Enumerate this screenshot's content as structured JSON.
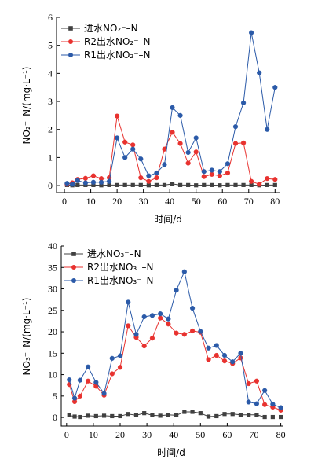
{
  "colors": {
    "influent": "#404040",
    "r2": "#e8322f",
    "r1": "#2b5aa8"
  },
  "chart_data": [
    {
      "type": "line",
      "title": "",
      "xlabel": "时间/d",
      "ylabel": "NO₂⁻–N/(mg·L⁻¹)",
      "xlim": [
        -3,
        82
      ],
      "ylim": [
        -0.25,
        6
      ],
      "xticks": [
        0,
        10,
        20,
        30,
        40,
        50,
        60,
        70,
        80
      ],
      "yticks": [
        0,
        1,
        2,
        3,
        4,
        5,
        6
      ],
      "grid": false,
      "legend_position": "top-left",
      "series": [
        {
          "name": "进水NO₂⁻–N",
          "marker": "square",
          "color_key": "influent",
          "points": [
            [
              1,
              0.02
            ],
            [
              3,
              0.01
            ],
            [
              5,
              0.02
            ],
            [
              8,
              0.02
            ],
            [
              11,
              0.02
            ],
            [
              14,
              0.01
            ],
            [
              17,
              0.02
            ],
            [
              20,
              0.02
            ],
            [
              23,
              0.02
            ],
            [
              26,
              0.02
            ],
            [
              29,
              0.02
            ],
            [
              32,
              0.01
            ],
            [
              35,
              0.02
            ],
            [
              38,
              0.02
            ],
            [
              41,
              0.06
            ],
            [
              44,
              0.02
            ],
            [
              47,
              0.02
            ],
            [
              50,
              0.01
            ],
            [
              53,
              0.02
            ],
            [
              56,
              0.02
            ],
            [
              59,
              0.01
            ],
            [
              62,
              0.02
            ],
            [
              65,
              0.02
            ],
            [
              68,
              0.02
            ],
            [
              71,
              0.02
            ],
            [
              74,
              0.01
            ],
            [
              77,
              0.02
            ],
            [
              80,
              0.02
            ]
          ]
        },
        {
          "name": "R2出水NO₂⁻–N",
          "marker": "circle",
          "color_key": "r2",
          "points": [
            [
              1,
              0.05
            ],
            [
              3,
              0.1
            ],
            [
              5,
              0.22
            ],
            [
              8,
              0.26
            ],
            [
              11,
              0.35
            ],
            [
              14,
              0.25
            ],
            [
              17,
              0.28
            ],
            [
              20,
              2.48
            ],
            [
              23,
              1.55
            ],
            [
              26,
              1.45
            ],
            [
              29,
              0.28
            ],
            [
              32,
              0.15
            ],
            [
              35,
              0.28
            ],
            [
              38,
              1.3
            ],
            [
              41,
              1.9
            ],
            [
              44,
              1.5
            ],
            [
              47,
              0.8
            ],
            [
              50,
              1.2
            ],
            [
              53,
              0.32
            ],
            [
              56,
              0.4
            ],
            [
              59,
              0.35
            ],
            [
              62,
              0.45
            ],
            [
              65,
              1.5
            ],
            [
              68,
              1.52
            ],
            [
              71,
              0.15
            ],
            [
              74,
              0.05
            ],
            [
              77,
              0.25
            ],
            [
              80,
              0.22
            ]
          ]
        },
        {
          "name": "R1出水NO₂⁻–N",
          "marker": "circle",
          "color_key": "r1",
          "points": [
            [
              1,
              0.08
            ],
            [
              3,
              0.05
            ],
            [
              5,
              0.18
            ],
            [
              8,
              0.1
            ],
            [
              11,
              0.12
            ],
            [
              14,
              0.12
            ],
            [
              17,
              0.15
            ],
            [
              20,
              1.7
            ],
            [
              23,
              1.0
            ],
            [
              26,
              1.3
            ],
            [
              29,
              0.95
            ],
            [
              32,
              0.35
            ],
            [
              35,
              0.45
            ],
            [
              38,
              0.75
            ],
            [
              41,
              2.78
            ],
            [
              44,
              2.5
            ],
            [
              47,
              1.18
            ],
            [
              50,
              1.7
            ],
            [
              53,
              0.5
            ],
            [
              56,
              0.55
            ],
            [
              59,
              0.5
            ],
            [
              62,
              0.78
            ],
            [
              65,
              2.1
            ],
            [
              68,
              2.95
            ],
            [
              71,
              5.45
            ],
            [
              74,
              4.02
            ],
            [
              77,
              2.0
            ],
            [
              80,
              3.5
            ]
          ]
        }
      ]
    },
    {
      "type": "line",
      "title": "",
      "xlabel": "时间/d",
      "ylabel": "NO₃⁻–N/(mg·L⁻¹)",
      "xlim": [
        -2,
        81
      ],
      "ylim": [
        -2,
        40
      ],
      "xticks": [
        0,
        10,
        20,
        30,
        40,
        50,
        60,
        70,
        80
      ],
      "yticks": [
        0,
        5,
        10,
        15,
        20,
        25,
        30,
        35,
        40
      ],
      "grid": false,
      "legend_position": "top-left",
      "series": [
        {
          "name": "进水NO₃⁻–N",
          "marker": "square",
          "color_key": "influent",
          "points": [
            [
              1,
              0.5
            ],
            [
              3,
              0.2
            ],
            [
              5,
              0.1
            ],
            [
              8,
              0.4
            ],
            [
              11,
              0.3
            ],
            [
              14,
              0.4
            ],
            [
              17,
              0.3
            ],
            [
              20,
              0.3
            ],
            [
              23,
              0.8
            ],
            [
              26,
              0.5
            ],
            [
              29,
              1.0
            ],
            [
              32,
              0.5
            ],
            [
              35,
              0.4
            ],
            [
              38,
              0.6
            ],
            [
              41,
              0.5
            ],
            [
              44,
              1.3
            ],
            [
              47,
              1.3
            ],
            [
              50,
              1.0
            ],
            [
              53,
              0.2
            ],
            [
              56,
              0.3
            ],
            [
              59,
              0.8
            ],
            [
              62,
              0.8
            ],
            [
              65,
              0.6
            ],
            [
              68,
              0.6
            ],
            [
              71,
              0.6
            ],
            [
              74,
              0.1
            ],
            [
              77,
              0.1
            ],
            [
              80,
              0.1
            ]
          ]
        },
        {
          "name": "R2出水NO₃⁻–N",
          "marker": "circle",
          "color_key": "r2",
          "points": [
            [
              1,
              7.7
            ],
            [
              3,
              3.7
            ],
            [
              5,
              5.0
            ],
            [
              8,
              8.5
            ],
            [
              11,
              7.3
            ],
            [
              14,
              5.2
            ],
            [
              17,
              10.2
            ],
            [
              20,
              11.7
            ],
            [
              23,
              21.4
            ],
            [
              26,
              18.7
            ],
            [
              29,
              16.7
            ],
            [
              32,
              18.5
            ],
            [
              35,
              23.2
            ],
            [
              38,
              21.8
            ],
            [
              41,
              19.7
            ],
            [
              44,
              19.4
            ],
            [
              47,
              20.2
            ],
            [
              50,
              19.9
            ],
            [
              53,
              13.5
            ],
            [
              56,
              14.5
            ],
            [
              59,
              13.2
            ],
            [
              62,
              12.6
            ],
            [
              65,
              13.9
            ],
            [
              68,
              7.9
            ],
            [
              71,
              8.5
            ],
            [
              74,
              3.0
            ],
            [
              77,
              2.4
            ],
            [
              80,
              1.7
            ]
          ]
        },
        {
          "name": "R1出水NO₃⁻–N",
          "marker": "circle",
          "color_key": "r1",
          "points": [
            [
              1,
              8.8
            ],
            [
              3,
              4.5
            ],
            [
              5,
              8.7
            ],
            [
              8,
              11.8
            ],
            [
              11,
              8.2
            ],
            [
              14,
              5.6
            ],
            [
              17,
              13.8
            ],
            [
              20,
              14.4
            ],
            [
              23,
              26.9
            ],
            [
              26,
              19.4
            ],
            [
              29,
              23.5
            ],
            [
              32,
              23.8
            ],
            [
              35,
              24.2
            ],
            [
              38,
              23.0
            ],
            [
              41,
              29.7
            ],
            [
              44,
              34.0
            ],
            [
              47,
              25.5
            ],
            [
              50,
              20.1
            ],
            [
              53,
              16.2
            ],
            [
              56,
              16.8
            ],
            [
              59,
              14.5
            ],
            [
              62,
              13.0
            ],
            [
              65,
              15.0
            ],
            [
              68,
              3.6
            ],
            [
              71,
              3.2
            ],
            [
              74,
              6.3
            ],
            [
              77,
              3.1
            ],
            [
              80,
              2.3
            ]
          ]
        }
      ]
    }
  ]
}
